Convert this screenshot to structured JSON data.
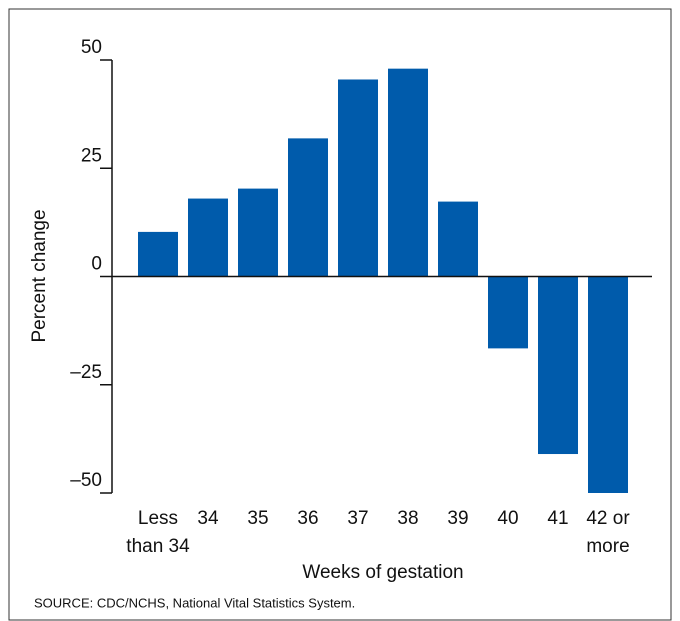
{
  "chart_data": {
    "type": "bar",
    "categories": [
      "Less than 34",
      "34",
      "35",
      "36",
      "37",
      "38",
      "39",
      "40",
      "41",
      "42 or more"
    ],
    "values": [
      10.3,
      18,
      20.3,
      31.9,
      45.5,
      48,
      17.3,
      -16.6,
      -41,
      -50
    ],
    "color": "#005bab",
    "xlabel": "Weeks of gestation",
    "ylabel": "Percent change",
    "source": "SOURCE: CDC/NCHS, National Vital Statistics System.",
    "ylim": [
      -50,
      50
    ],
    "yticks": [
      {
        "value": -50,
        "label": "–50"
      },
      {
        "value": -25,
        "label": "–25"
      },
      0,
      25,
      50
    ],
    "grid": false
  }
}
